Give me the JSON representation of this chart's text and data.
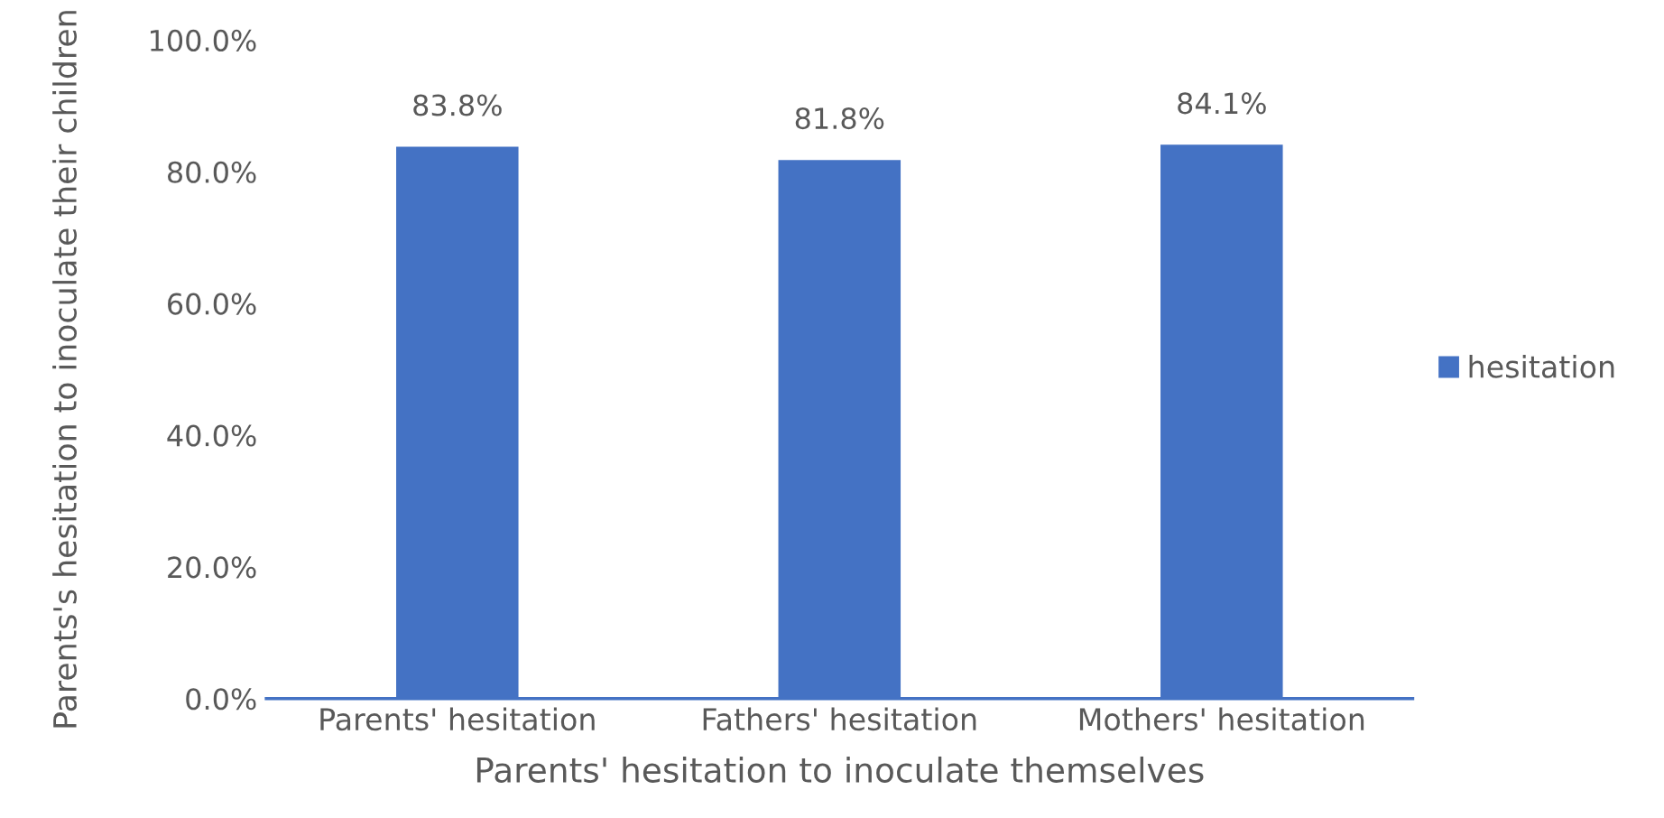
{
  "chart_data": {
    "type": "bar",
    "xlabel": "Parents' hesitation to inoculate themselves",
    "ylabel": "Parents's hesitation to inoculate their children",
    "categories": [
      "Parents' hesitation",
      "Fathers' hesitation",
      "Mothers' hesitation"
    ],
    "series": [
      {
        "name": "hesitation",
        "color": "#4472c4",
        "values": [
          83.8,
          81.8,
          84.1
        ],
        "value_labels": [
          "83.8%",
          "81.8%",
          "84.1%"
        ]
      }
    ],
    "ylim": [
      0,
      100
    ],
    "yticks": [
      {
        "value": 0,
        "label": "0.0%"
      },
      {
        "value": 20,
        "label": "20.0%"
      },
      {
        "value": 40,
        "label": "40.0%"
      },
      {
        "value": 60,
        "label": "60.0%"
      },
      {
        "value": 80,
        "label": "80.0%"
      },
      {
        "value": 100,
        "label": "100.0%"
      }
    ],
    "grid": false,
    "legend": "right"
  }
}
